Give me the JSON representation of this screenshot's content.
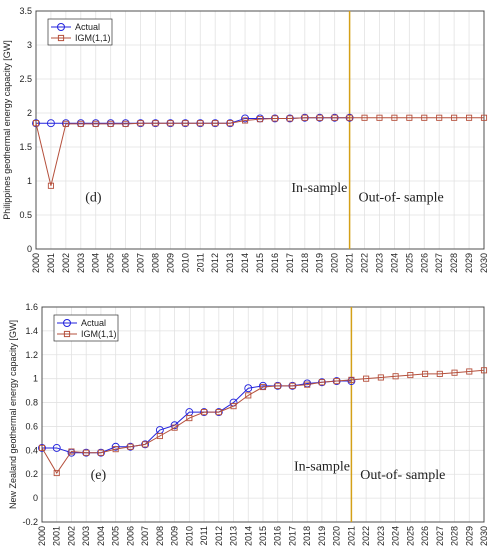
{
  "chart_data": [
    {
      "type": "line",
      "ylabel": "Philippines geothermal energy capacity [GW]",
      "x": [
        2000,
        2001,
        2002,
        2003,
        2004,
        2005,
        2006,
        2007,
        2008,
        2009,
        2010,
        2011,
        2012,
        2013,
        2014,
        2015,
        2016,
        2017,
        2018,
        2019,
        2020,
        2021,
        2022,
        2023,
        2024,
        2025,
        2026,
        2027,
        2028,
        2029,
        2030
      ],
      "xlim": [
        2000,
        2030
      ],
      "ylim": [
        0,
        3.5
      ],
      "yticks": [
        0,
        0.5,
        1,
        1.5,
        2,
        2.5,
        3,
        3.5
      ],
      "grid": true,
      "legend": "upper left",
      "split_x": 2021,
      "split_color": "#d4a017",
      "annotations": [
        "(d)",
        "In-sample",
        "Out-of- sample"
      ],
      "series": [
        {
          "name": "Actual",
          "color": "#2222dd",
          "marker": "circle",
          "values": [
            1.85,
            1.85,
            1.85,
            1.85,
            1.85,
            1.85,
            1.85,
            1.85,
            1.85,
            1.85,
            1.85,
            1.85,
            1.85,
            1.85,
            1.92,
            1.92,
            1.92,
            1.92,
            1.93,
            1.93,
            1.93,
            1.93,
            null,
            null,
            null,
            null,
            null,
            null,
            null,
            null,
            null
          ]
        },
        {
          "name": "IGM(1,1)",
          "color": "#b5503c",
          "marker": "square",
          "values": [
            1.85,
            0.93,
            1.84,
            1.84,
            1.84,
            1.84,
            1.84,
            1.85,
            1.85,
            1.85,
            1.85,
            1.85,
            1.85,
            1.85,
            1.89,
            1.91,
            1.92,
            1.92,
            1.93,
            1.93,
            1.93,
            1.93,
            1.93,
            1.93,
            1.93,
            1.93,
            1.93,
            1.93,
            1.93,
            1.93,
            1.93
          ]
        }
      ]
    },
    {
      "type": "line",
      "ylabel": "New Zealand geothermal energy capacity [GW]",
      "x": [
        2000,
        2001,
        2002,
        2003,
        2004,
        2005,
        2006,
        2007,
        2008,
        2009,
        2010,
        2011,
        2012,
        2013,
        2014,
        2015,
        2016,
        2017,
        2018,
        2019,
        2020,
        2021,
        2022,
        2023,
        2024,
        2025,
        2026,
        2027,
        2028,
        2029,
        2030
      ],
      "xlim": [
        2000,
        2030
      ],
      "ylim": [
        -0.2,
        1.6
      ],
      "yticks": [
        -0.2,
        0,
        0.2,
        0.4,
        0.6,
        0.8,
        1,
        1.2,
        1.4,
        1.6
      ],
      "grid": true,
      "legend": "upper left",
      "split_x": 2021,
      "split_color": "#d4a017",
      "annotations": [
        "(e)",
        "In-sample",
        "Out-of- sample"
      ],
      "series": [
        {
          "name": "Actual",
          "color": "#2222dd",
          "marker": "circle",
          "values": [
            0.42,
            0.42,
            0.38,
            0.38,
            0.38,
            0.43,
            0.43,
            0.45,
            0.57,
            0.61,
            0.72,
            0.72,
            0.72,
            0.8,
            0.92,
            0.94,
            0.94,
            0.94,
            0.96,
            0.97,
            0.98,
            0.98,
            null,
            null,
            null,
            null,
            null,
            null,
            null,
            null,
            null
          ]
        },
        {
          "name": "IGM(1,1)",
          "color": "#b5503c",
          "marker": "square",
          "values": [
            0.42,
            0.21,
            0.39,
            0.38,
            0.38,
            0.41,
            0.43,
            0.45,
            0.52,
            0.59,
            0.67,
            0.72,
            0.72,
            0.77,
            0.86,
            0.93,
            0.94,
            0.94,
            0.95,
            0.97,
            0.98,
            0.99,
            1.0,
            1.01,
            1.02,
            1.03,
            1.04,
            1.04,
            1.05,
            1.06,
            1.07
          ]
        }
      ]
    }
  ]
}
